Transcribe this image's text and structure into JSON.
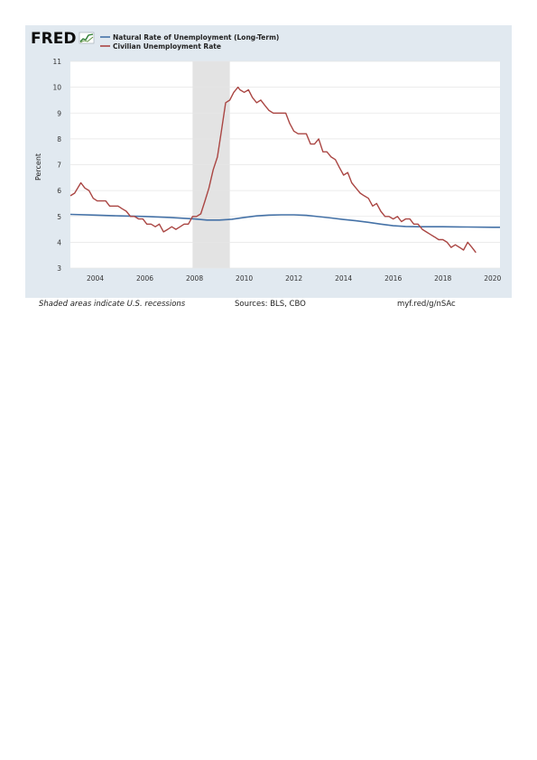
{
  "logo": {
    "text": "FRED"
  },
  "footer": {
    "note": "Shaded areas indicate U.S. recessions",
    "sources": "Sources: BLS, CBO",
    "link": "myf.red/g/nSAc"
  },
  "colors": {
    "panel": "#e1e9f0",
    "natural": "#4572a7",
    "civilian": "#aa4643",
    "recession": "#e3e3e3"
  },
  "chart_data": {
    "type": "line",
    "title": "",
    "xlabel": "",
    "ylabel": "Percent",
    "xlim": [
      2003.0,
      2020.3
    ],
    "ylim": [
      3,
      11
    ],
    "yticks": [
      3,
      4,
      5,
      6,
      7,
      8,
      9,
      10,
      11
    ],
    "xticks": [
      2004,
      2006,
      2008,
      2010,
      2012,
      2014,
      2016,
      2018,
      2020
    ],
    "grid": true,
    "legend_position": "top-left",
    "recessions": [
      [
        2007.92,
        2009.42
      ]
    ],
    "series": [
      {
        "name": "Natural Rate of Unemployment (Long-Term)",
        "color": "#4572a7",
        "x": [
          2003.0,
          2004.0,
          2005.0,
          2006.0,
          2007.0,
          2008.0,
          2008.5,
          2009.0,
          2009.5,
          2010.0,
          2010.5,
          2011.0,
          2011.5,
          2012.0,
          2012.5,
          2013.0,
          2013.5,
          2014.0,
          2014.5,
          2015.0,
          2015.5,
          2016.0,
          2016.5,
          2017.0,
          2018.0,
          2019.0,
          2020.0,
          2020.3
        ],
        "y": [
          5.08,
          5.05,
          5.02,
          5.0,
          4.96,
          4.9,
          4.86,
          4.86,
          4.89,
          4.96,
          5.02,
          5.05,
          5.06,
          5.06,
          5.04,
          4.99,
          4.94,
          4.88,
          4.83,
          4.77,
          4.7,
          4.64,
          4.61,
          4.6,
          4.6,
          4.59,
          4.58,
          4.58
        ]
      },
      {
        "name": "Civilian Unemployment Rate",
        "color": "#aa4643",
        "x": [
          2003.0,
          2003.17,
          2003.42,
          2003.58,
          2003.75,
          2003.92,
          2004.08,
          2004.25,
          2004.42,
          2004.58,
          2004.75,
          2004.92,
          2005.08,
          2005.25,
          2005.42,
          2005.58,
          2005.75,
          2005.92,
          2006.08,
          2006.25,
          2006.42,
          2006.58,
          2006.75,
          2006.92,
          2007.08,
          2007.25,
          2007.42,
          2007.58,
          2007.75,
          2007.92,
          2008.08,
          2008.25,
          2008.42,
          2008.58,
          2008.75,
          2008.92,
          2009.08,
          2009.25,
          2009.42,
          2009.58,
          2009.75,
          2009.83,
          2010.0,
          2010.17,
          2010.33,
          2010.5,
          2010.67,
          2010.83,
          2011.0,
          2011.17,
          2011.33,
          2011.5,
          2011.67,
          2011.83,
          2012.0,
          2012.17,
          2012.33,
          2012.5,
          2012.67,
          2012.83,
          2013.0,
          2013.17,
          2013.33,
          2013.5,
          2013.67,
          2013.83,
          2014.0,
          2014.17,
          2014.33,
          2014.5,
          2014.67,
          2014.83,
          2015.0,
          2015.17,
          2015.33,
          2015.5,
          2015.67,
          2015.83,
          2016.0,
          2016.17,
          2016.33,
          2016.5,
          2016.67,
          2016.83,
          2017.0,
          2017.17,
          2017.33,
          2017.5,
          2017.67,
          2017.83,
          2018.0,
          2018.17,
          2018.33,
          2018.5,
          2018.67,
          2018.83,
          2019.0,
          2019.17,
          2019.33
        ],
        "y": [
          5.8,
          5.9,
          6.3,
          6.1,
          6.0,
          5.7,
          5.6,
          5.6,
          5.6,
          5.4,
          5.4,
          5.4,
          5.3,
          5.2,
          5.0,
          5.0,
          4.9,
          4.9,
          4.7,
          4.7,
          4.6,
          4.7,
          4.4,
          4.5,
          4.6,
          4.5,
          4.6,
          4.7,
          4.7,
          5.0,
          5.0,
          5.1,
          5.6,
          6.1,
          6.8,
          7.3,
          8.3,
          9.4,
          9.5,
          9.8,
          10.0,
          9.9,
          9.8,
          9.9,
          9.6,
          9.4,
          9.5,
          9.3,
          9.1,
          9.0,
          9.0,
          9.0,
          9.0,
          8.6,
          8.3,
          8.2,
          8.2,
          8.2,
          7.8,
          7.8,
          8.0,
          7.5,
          7.5,
          7.3,
          7.2,
          6.9,
          6.6,
          6.7,
          6.3,
          6.1,
          5.9,
          5.8,
          5.7,
          5.4,
          5.5,
          5.2,
          5.0,
          5.0,
          4.9,
          5.0,
          4.8,
          4.9,
          4.9,
          4.7,
          4.7,
          4.5,
          4.4,
          4.3,
          4.2,
          4.1,
          4.1,
          4.0,
          3.8,
          3.9,
          3.8,
          3.7,
          4.0,
          3.8,
          3.6
        ]
      }
    ]
  }
}
